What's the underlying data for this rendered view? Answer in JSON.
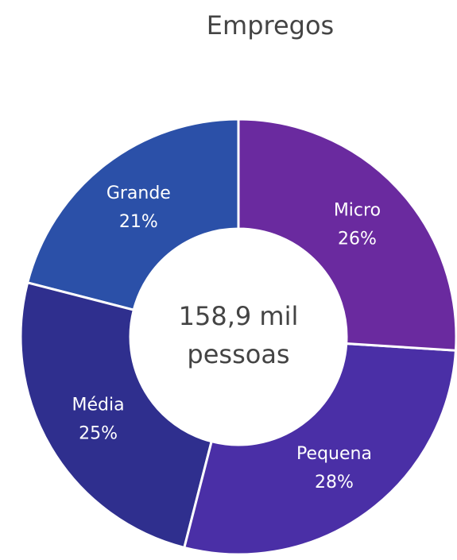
{
  "chart_data": {
    "type": "donut",
    "title": "Empregos",
    "categories": [
      "Micro",
      "Pequena",
      "Média",
      "Grande"
    ],
    "values": [
      26,
      28,
      25,
      21
    ],
    "value_labels": [
      "26%",
      "28%",
      "25%",
      "21%"
    ],
    "colors": [
      "#6a2a9f",
      "#4a2fa6",
      "#2f2f8e",
      "#2b50a8"
    ],
    "center_label": [
      "158,9 mil",
      "pessoas"
    ]
  }
}
